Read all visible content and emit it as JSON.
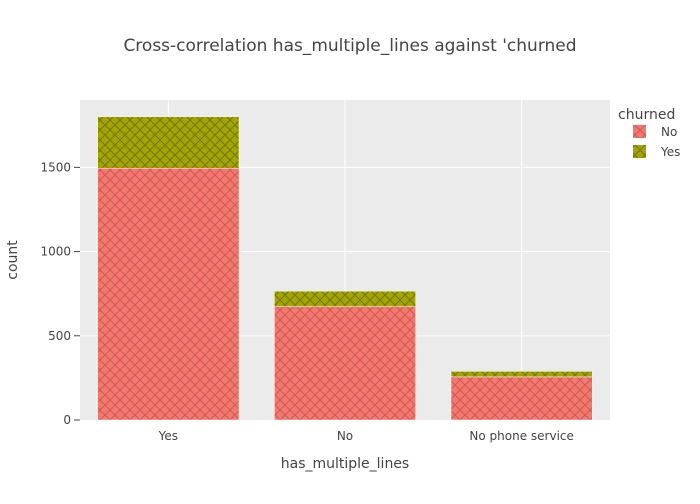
{
  "chart_data": {
    "type": "bar",
    "barmode": "stack",
    "title": "Cross-correlation has_multiple_lines against 'churned",
    "xlabel": "has_multiple_lines",
    "ylabel": "count",
    "categories": [
      "Yes",
      "No",
      "No phone service"
    ],
    "series": [
      {
        "name": "No",
        "values": [
          1495,
          673,
          256
        ],
        "color": "#F8766D",
        "pattern": "crosshatch"
      },
      {
        "name": "Yes",
        "values": [
          306,
          92,
          33
        ],
        "color": "#A3A500",
        "pattern": "crosshatch"
      }
    ],
    "ylim": [
      0,
      1900
    ],
    "yticks": [
      0,
      500,
      1000,
      1500
    ],
    "ytick_labels": [
      "0",
      "500",
      "1000",
      "1500"
    ],
    "grid": true,
    "plot_background": "#EBEBEB",
    "legend": {
      "title": "churned",
      "position": "top-right"
    }
  }
}
